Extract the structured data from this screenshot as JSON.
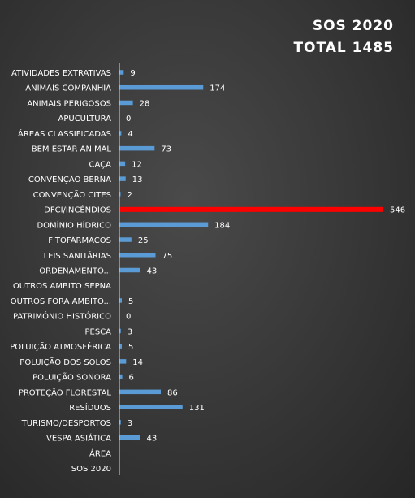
{
  "chart_data": {
    "type": "bar",
    "orientation": "horizontal",
    "title": "SOS  2020",
    "subtitle": "TOTAL  1485",
    "categories": [
      "ATIVIDADES EXTRATIVAS",
      "ANIMAIS COMPANHIA",
      "ANIMAIS PERIGOSOS",
      "APUCULTURA",
      "ÁREAS CLASSIFICADAS",
      "BEM ESTAR ANIMAL",
      "CAÇA",
      "CONVENÇÃO BERNA",
      "CONVENÇÃO CITES",
      "DFCI/INCÊNDIOS",
      "DOMÍNIO HÍDRICO",
      "FITOFÁRMACOS",
      "LEIS SANITÁRIAS",
      "ORDENAMENTO...",
      "OUTROS AMBITO SEPNA",
      "OUTROS FORA AMBITO...",
      "PATRIMÓNIO HISTÓRICO",
      "PESCA",
      "POLUIÇÃO ATMOSFÉRICA",
      "POLUIÇÃO DOS SOLOS",
      "POLUIÇÃO SONORA",
      "PROTEÇÃO FLORESTAL",
      "RESÍDUOS",
      "TURISMO/DESPORTOS",
      "VESPA ASIÁTICA",
      "ÁREA",
      "SOS 2020"
    ],
    "values": [
      9,
      174,
      28,
      0,
      4,
      73,
      12,
      13,
      2,
      546,
      184,
      25,
      75,
      43,
      null,
      5,
      0,
      3,
      5,
      14,
      6,
      86,
      131,
      3,
      43,
      null,
      null
    ],
    "value_labels": [
      "9",
      "174",
      "28",
      "0",
      "4",
      "73",
      "12",
      "13",
      "2",
      "546",
      "184",
      "25",
      "75",
      "43",
      "",
      "5",
      "0",
      "3",
      "5",
      "14",
      "6",
      "86",
      "131",
      "3",
      "43",
      "",
      ""
    ],
    "highlight_category": "DFCI/INCÊNDIOS",
    "colors": {
      "bar": "#5b9bd5",
      "highlight": "#ff0000",
      "axis": "#d9d9d9",
      "text": "#ffffff"
    },
    "xlim": [
      0,
      546
    ],
    "grid": false,
    "legend": "none"
  }
}
